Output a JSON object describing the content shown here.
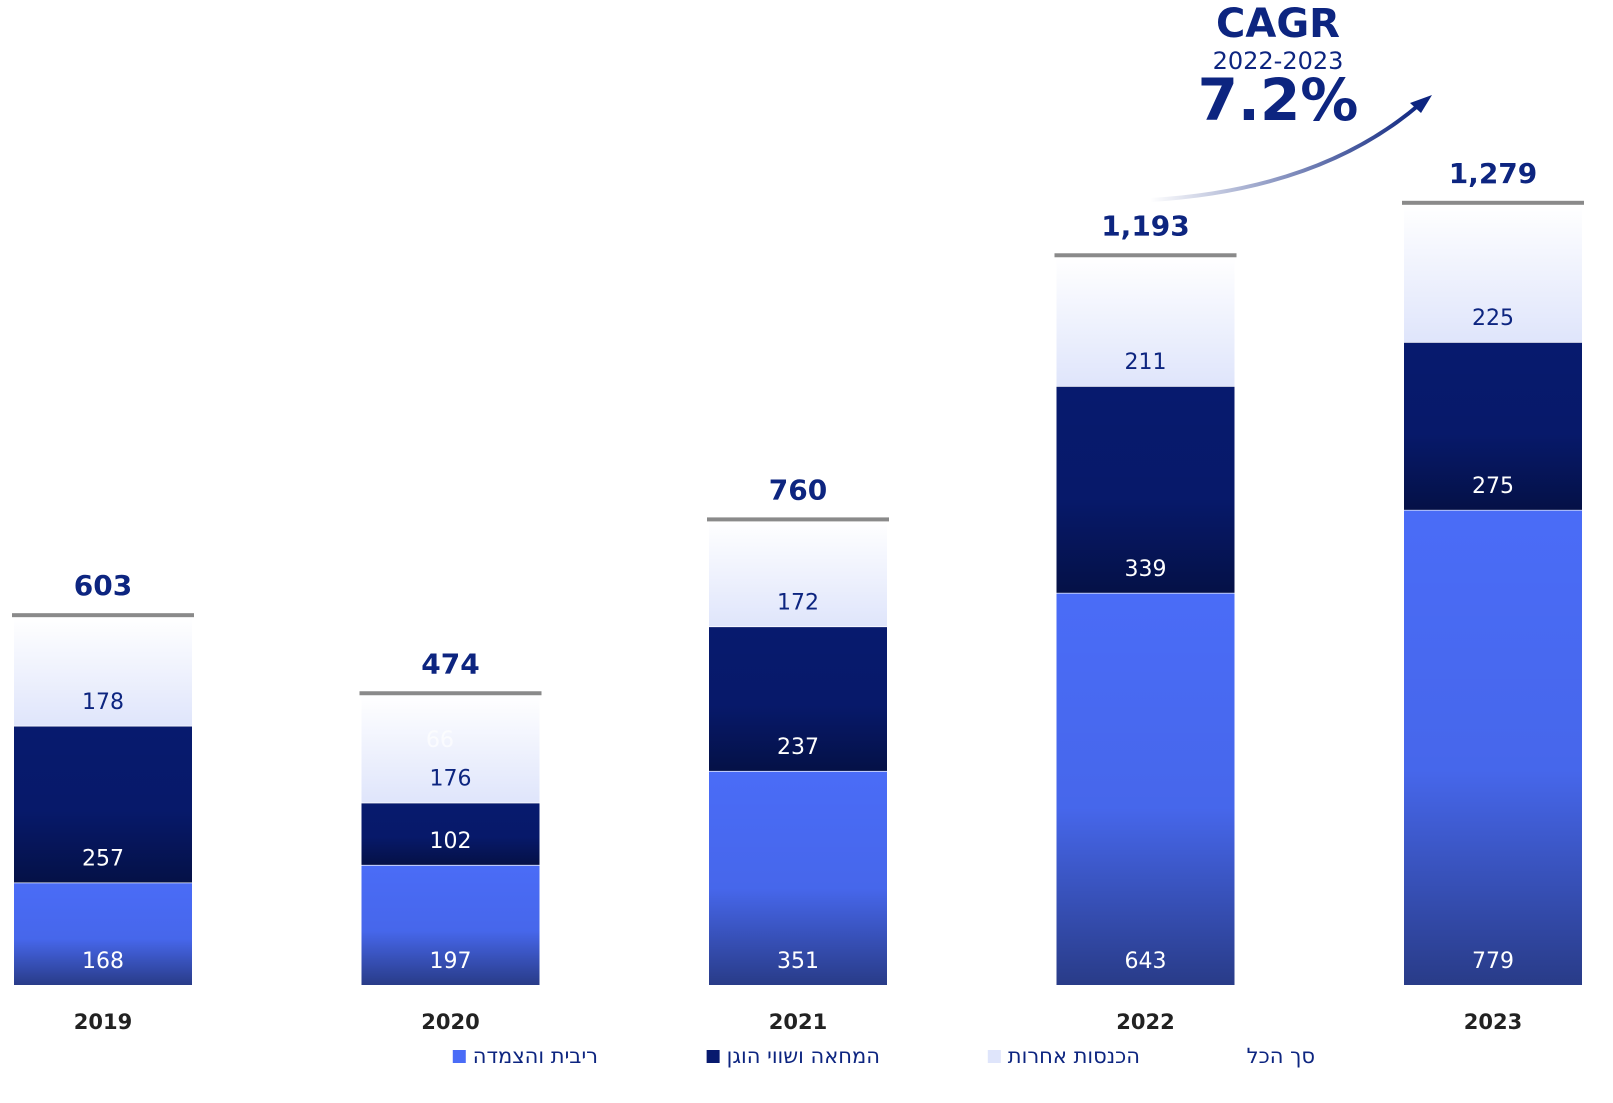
{
  "chart_data": {
    "type": "stacked-bar",
    "categories": [
      "2019",
      "2020",
      "2021",
      "2022",
      "2023"
    ],
    "series": [
      {
        "name": "ריבית והצמדה",
        "color": "#4a6cf7",
        "label_color": "#ffffff",
        "values": [
          168,
          197,
          351,
          643,
          779
        ]
      },
      {
        "name": "המחאה ושווי הוגן",
        "color": "#071a6e",
        "label_color": "#ffffff",
        "values": [
          257,
          102,
          237,
          339,
          275
        ]
      },
      {
        "name": "הכנסות אחרות",
        "color": "#dfe5fb",
        "label_color": "#0d2580",
        "values": [
          178,
          176,
          172,
          211,
          225
        ]
      }
    ],
    "total_series": {
      "name": "סך הכל",
      "values": [
        603,
        474,
        760,
        1193,
        1279
      ],
      "value_labels": [
        "603",
        "474",
        "760",
        "1,193",
        "1,279"
      ]
    },
    "annotations": [
      "66"
    ],
    "cagr": {
      "title": "CAGR",
      "period": "2022-2023",
      "label": "7.2%"
    },
    "ylim": [
      0,
      1400
    ]
  }
}
